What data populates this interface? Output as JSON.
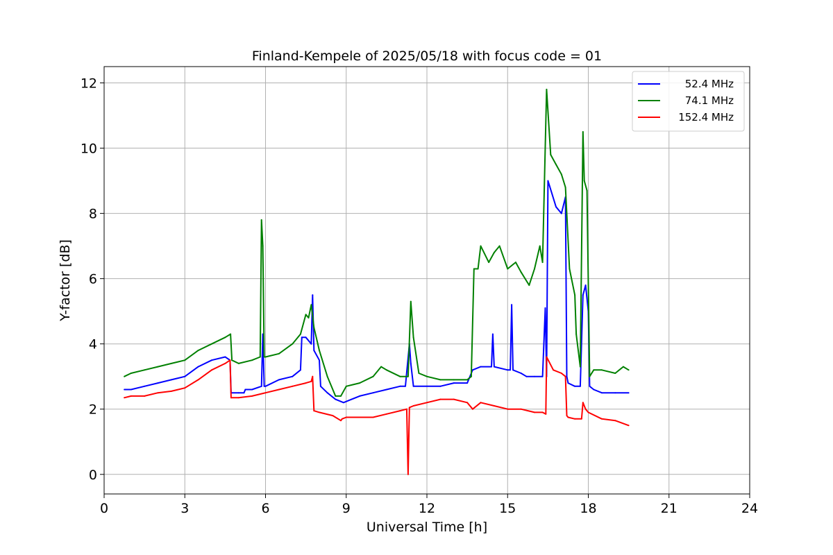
{
  "chart_data": {
    "type": "line",
    "title": "Finland-Kempele of 2025/05/18 with focus code = 01",
    "xlabel": "Universal Time [h]",
    "ylabel": "Y-factor [dB]",
    "xlim": [
      0,
      24
    ],
    "ylim": [
      -0.6,
      12.5
    ],
    "xticks": [
      0,
      3,
      6,
      9,
      12,
      15,
      18,
      21,
      24
    ],
    "xtick_labels": [
      "0",
      "3",
      "6",
      "9",
      "12",
      "15",
      "18",
      "21",
      "24"
    ],
    "yticks": [
      0,
      2,
      4,
      6,
      8,
      10,
      12
    ],
    "ytick_labels": [
      "0",
      "2",
      "4",
      "6",
      "8",
      "10",
      "12"
    ],
    "grid": true,
    "legend_position": "top-right",
    "series": [
      {
        "name": "52.4 MHz",
        "color": "#0000ff",
        "x": [
          0.75,
          1.0,
          1.5,
          2.0,
          2.5,
          3.0,
          3.5,
          4.0,
          4.5,
          4.68,
          4.72,
          5.0,
          5.2,
          5.25,
          5.5,
          5.85,
          5.9,
          5.95,
          6.0,
          6.5,
          7.0,
          7.3,
          7.35,
          7.5,
          7.7,
          7.75,
          7.8,
          8.0,
          8.05,
          8.3,
          8.6,
          8.9,
          9.2,
          9.5,
          10.0,
          10.5,
          11.0,
          11.2,
          11.35,
          11.4,
          11.5,
          12.0,
          12.5,
          13.0,
          13.5,
          13.7,
          14.0,
          14.4,
          14.45,
          14.5,
          15.0,
          15.1,
          15.15,
          15.2,
          15.5,
          15.7,
          16.0,
          16.3,
          16.4,
          16.45,
          16.5,
          16.8,
          17.0,
          17.15,
          17.2,
          17.25,
          17.5,
          17.7,
          17.8,
          17.9,
          18.0,
          18.05,
          18.2,
          18.5,
          19.0,
          19.5
        ],
        "y": [
          2.6,
          2.6,
          2.7,
          2.8,
          2.9,
          3.0,
          3.3,
          3.5,
          3.6,
          3.5,
          2.5,
          2.5,
          2.5,
          2.6,
          2.6,
          2.7,
          4.3,
          2.7,
          2.7,
          2.9,
          3.0,
          3.2,
          4.2,
          4.2,
          4.0,
          5.5,
          3.8,
          3.5,
          2.7,
          2.5,
          2.3,
          2.2,
          2.3,
          2.4,
          2.5,
          2.6,
          2.7,
          2.7,
          4.0,
          3.4,
          2.7,
          2.7,
          2.7,
          2.8,
          2.8,
          3.2,
          3.3,
          3.3,
          4.3,
          3.3,
          3.2,
          3.2,
          5.2,
          3.2,
          3.1,
          3.0,
          3.0,
          3.0,
          5.1,
          3.0,
          9.0,
          8.2,
          8.0,
          8.5,
          3.0,
          2.8,
          2.7,
          2.7,
          5.5,
          5.8,
          5.0,
          2.7,
          2.6,
          2.5,
          2.5,
          2.5
        ]
      },
      {
        "name": "74.1 MHz",
        "color": "#008000",
        "x": [
          0.75,
          1.0,
          1.5,
          2.0,
          2.5,
          3.0,
          3.5,
          4.0,
          4.5,
          4.7,
          4.75,
          5.0,
          5.5,
          5.8,
          5.85,
          5.9,
          5.95,
          6.0,
          6.5,
          7.0,
          7.3,
          7.5,
          7.6,
          7.7,
          7.8,
          8.0,
          8.3,
          8.6,
          8.8,
          9.0,
          9.5,
          10.0,
          10.3,
          10.5,
          11.0,
          11.3,
          11.4,
          11.5,
          11.7,
          12.0,
          12.5,
          13.0,
          13.5,
          13.65,
          13.75,
          13.9,
          14.0,
          14.3,
          14.5,
          14.7,
          15.0,
          15.3,
          15.5,
          15.8,
          16.0,
          16.2,
          16.3,
          16.45,
          16.6,
          16.8,
          17.0,
          17.15,
          17.3,
          17.5,
          17.55,
          17.7,
          17.8,
          17.85,
          17.95,
          18.05,
          18.2,
          18.5,
          19.0,
          19.3,
          19.5
        ],
        "y": [
          3.0,
          3.1,
          3.2,
          3.3,
          3.4,
          3.5,
          3.8,
          4.0,
          4.2,
          4.3,
          3.5,
          3.4,
          3.5,
          3.6,
          7.8,
          7.0,
          3.6,
          3.6,
          3.7,
          4.0,
          4.3,
          4.9,
          4.8,
          5.2,
          4.5,
          3.8,
          3.0,
          2.4,
          2.4,
          2.7,
          2.8,
          3.0,
          3.3,
          3.2,
          3.0,
          3.0,
          5.3,
          4.2,
          3.1,
          3.0,
          2.9,
          2.9,
          2.9,
          3.0,
          6.3,
          6.3,
          7.0,
          6.5,
          6.8,
          7.0,
          6.3,
          6.5,
          6.2,
          5.8,
          6.3,
          7.0,
          6.5,
          11.8,
          9.8,
          9.5,
          9.2,
          8.8,
          6.3,
          5.5,
          4.3,
          3.3,
          10.5,
          9.0,
          8.7,
          3.0,
          3.2,
          3.2,
          3.1,
          3.3,
          3.2
        ]
      },
      {
        "name": "152.4 MHz",
        "color": "#ff0000",
        "x": [
          0.75,
          1.0,
          1.5,
          2.0,
          2.5,
          3.0,
          3.5,
          4.0,
          4.5,
          4.68,
          4.72,
          5.0,
          5.5,
          6.0,
          6.5,
          7.0,
          7.5,
          7.7,
          7.75,
          7.8,
          8.0,
          8.5,
          8.8,
          8.85,
          9.0,
          9.5,
          10.0,
          10.5,
          11.0,
          11.25,
          11.3,
          11.35,
          11.5,
          12.0,
          12.5,
          13.0,
          13.5,
          13.7,
          14.0,
          14.5,
          15.0,
          15.5,
          16.0,
          16.3,
          16.42,
          16.45,
          16.7,
          17.0,
          17.15,
          17.2,
          17.25,
          17.5,
          17.75,
          17.8,
          17.9,
          18.0,
          18.5,
          19.0,
          19.5
        ],
        "y": [
          2.35,
          2.4,
          2.4,
          2.5,
          2.55,
          2.65,
          2.9,
          3.2,
          3.4,
          3.5,
          2.35,
          2.35,
          2.4,
          2.5,
          2.6,
          2.7,
          2.8,
          2.85,
          3.0,
          1.95,
          1.9,
          1.8,
          1.65,
          1.7,
          1.75,
          1.75,
          1.75,
          1.85,
          1.95,
          2.0,
          0.0,
          2.05,
          2.1,
          2.2,
          2.3,
          2.3,
          2.2,
          2.0,
          2.2,
          2.1,
          2.0,
          2.0,
          1.9,
          1.9,
          1.85,
          3.6,
          3.2,
          3.1,
          3.0,
          1.8,
          1.75,
          1.7,
          1.7,
          2.2,
          2.0,
          1.9,
          1.7,
          1.65,
          1.5
        ]
      }
    ]
  }
}
